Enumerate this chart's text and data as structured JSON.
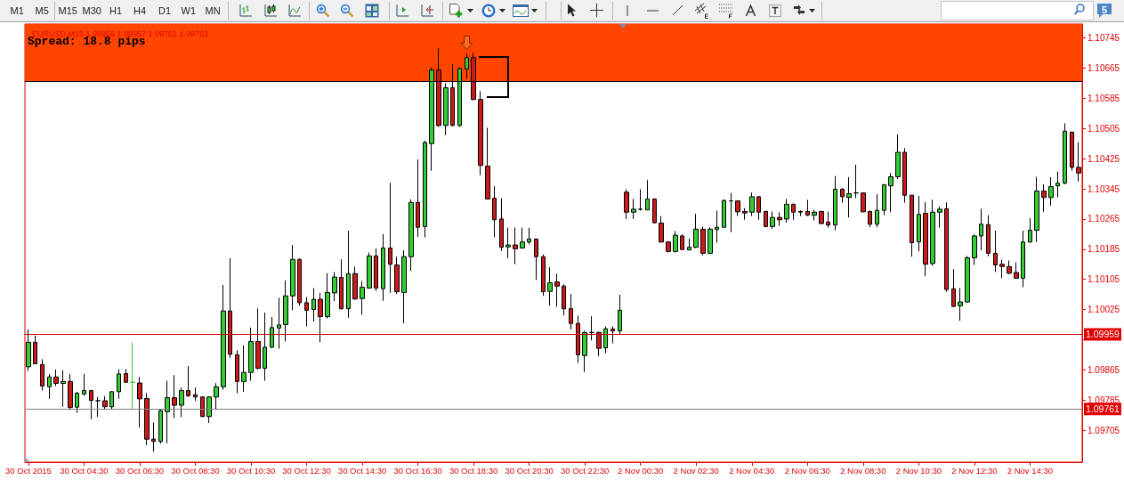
{
  "chart_data": {
    "type": "candlestick",
    "title": "EURUSD,M15 1.09956 1.09957 1.09761 1.09761",
    "categories": [
      "30 Oct 2015",
      null,
      null,
      null,
      null,
      null,
      null,
      null,
      "30 Oct 04:30",
      null,
      null,
      null,
      null,
      null,
      null,
      null,
      "30 Oct 06:30",
      null,
      null,
      null,
      null,
      null,
      null,
      null,
      "30 Oct 08:30",
      null,
      null,
      null,
      null,
      null,
      null,
      null,
      "30 Oct 10:30",
      null,
      null,
      null,
      null,
      null,
      null,
      null,
      "30 Oct 12:30",
      null,
      null,
      null,
      null,
      null,
      null,
      null,
      "30 Oct 14:30",
      null,
      null,
      null,
      null,
      null,
      null,
      null,
      "30 Oct 16:30",
      null,
      null,
      null,
      null,
      null,
      null,
      null,
      "30 Oct 18:30",
      null,
      null,
      null,
      null,
      null,
      null,
      null,
      "30 Oct 20:30",
      null,
      null,
      null,
      null,
      null,
      null,
      null,
      "30 Oct 22:30",
      null,
      null,
      null,
      null,
      null,
      null,
      null,
      "2 Nov 00:30",
      null,
      null,
      null,
      null,
      null,
      null,
      null,
      "2 Nov 02:30",
      null,
      null,
      null,
      null,
      null,
      null,
      null,
      "2 Nov 04:30",
      null,
      null,
      null,
      null,
      null,
      null,
      null,
      "2 Nov 06:30",
      null,
      null,
      null,
      null,
      null,
      null,
      null,
      "2 Nov 08:30",
      null,
      null,
      null,
      null,
      null,
      null,
      null,
      "2 Nov 10:30",
      null,
      null,
      null,
      null,
      null,
      null,
      null,
      "2 Nov 12:30",
      null,
      null,
      null,
      null,
      null,
      null,
      null,
      "2 Nov 14:30",
      null,
      null,
      null,
      null,
      null,
      null,
      null
    ],
    "ohlc": [
      [
        1.09873,
        1.09972,
        1.09862,
        1.09938
      ],
      [
        1.09938,
        1.09956,
        1.0988,
        1.09881
      ],
      [
        1.09879,
        1.09893,
        1.0981,
        1.09822
      ],
      [
        1.0982,
        1.09854,
        1.09788,
        1.09846
      ],
      [
        1.09846,
        1.09866,
        1.09822,
        1.09829
      ],
      [
        1.09829,
        1.09864,
        1.09767,
        1.09834
      ],
      [
        1.09834,
        1.09854,
        1.09758,
        1.09765
      ],
      [
        1.09766,
        1.09807,
        1.09751,
        1.09803
      ],
      [
        1.09801,
        1.09854,
        1.09796,
        1.0981
      ],
      [
        1.0981,
        1.09812,
        1.09734,
        1.09784
      ],
      [
        1.09783,
        1.09793,
        1.0974,
        1.09783
      ],
      [
        1.09783,
        1.09795,
        1.09759,
        1.09767
      ],
      [
        1.09767,
        1.09808,
        1.09759,
        1.09807
      ],
      [
        1.09807,
        1.09866,
        1.09788,
        1.09854
      ],
      [
        1.09855,
        1.09867,
        1.0983,
        1.09832
      ],
      [
        1.09832,
        1.09938,
        1.09759,
        1.09832
      ],
      [
        1.0983,
        1.09846,
        1.09712,
        1.09788
      ],
      [
        1.09789,
        1.09803,
        1.09665,
        1.09681
      ],
      [
        1.09681,
        1.09725,
        1.09648,
        1.09675
      ],
      [
        1.09675,
        1.09759,
        1.09669,
        1.09757
      ],
      [
        1.09754,
        1.09836,
        1.0967,
        1.09791
      ],
      [
        1.09791,
        1.09851,
        1.09737,
        1.09771
      ],
      [
        1.09771,
        1.09818,
        1.0974,
        1.0981
      ],
      [
        1.0981,
        1.09875,
        1.09793,
        1.09796
      ],
      [
        1.09799,
        1.09818,
        1.09783,
        1.09793
      ],
      [
        1.09793,
        1.09795,
        1.0974,
        1.09741
      ],
      [
        1.09741,
        1.09795,
        1.09724,
        1.09793
      ],
      [
        1.09793,
        1.0983,
        1.09759,
        1.0982
      ],
      [
        1.0982,
        1.1009,
        1.09812,
        1.10021
      ],
      [
        1.10021,
        1.10161,
        1.09897,
        1.09906
      ],
      [
        1.09905,
        1.09917,
        1.09803,
        1.09834
      ],
      [
        1.09834,
        1.0993,
        1.09807,
        1.09858
      ],
      [
        1.09858,
        1.09977,
        1.09836,
        1.0994
      ],
      [
        1.0994,
        1.10028,
        1.09866,
        1.09869
      ],
      [
        1.09869,
        1.10017,
        1.09836,
        1.09925
      ],
      [
        1.09925,
        1.10005,
        1.09922,
        1.09977
      ],
      [
        1.09976,
        1.10056,
        1.09921,
        1.09984
      ],
      [
        1.09985,
        1.10102,
        1.0994,
        1.10061
      ],
      [
        1.10061,
        1.10196,
        1.10023,
        1.10158
      ],
      [
        1.10158,
        1.1016,
        1.10035,
        1.10043
      ],
      [
        1.10043,
        1.10058,
        1.0998,
        1.10023
      ],
      [
        1.10025,
        1.10082,
        1.09993,
        1.10052
      ],
      [
        1.10052,
        1.10069,
        1.09938,
        1.10006
      ],
      [
        1.10006,
        1.10121,
        1.10001,
        1.1007
      ],
      [
        1.10069,
        1.10124,
        1.10047,
        1.10111
      ],
      [
        1.1011,
        1.10158,
        1.10025,
        1.10027
      ],
      [
        1.10027,
        1.10234,
        1.10003,
        1.1012
      ],
      [
        1.1012,
        1.10139,
        1.10051,
        1.10053
      ],
      [
        1.10054,
        1.101,
        1.10011,
        1.10084
      ],
      [
        1.10082,
        1.10176,
        1.1008,
        1.10167
      ],
      [
        1.10167,
        1.10187,
        1.10074,
        1.10082
      ],
      [
        1.1008,
        1.10225,
        1.10048,
        1.10188
      ],
      [
        1.10188,
        1.10361,
        1.10069,
        1.10145
      ],
      [
        1.10143,
        1.10165,
        1.10066,
        1.10072
      ],
      [
        1.1007,
        1.10182,
        1.09988,
        1.10165
      ],
      [
        1.10165,
        1.10317,
        1.10127,
        1.10309
      ],
      [
        1.10309,
        1.10423,
        1.10218,
        1.10243
      ],
      [
        1.10245,
        1.10473,
        1.10216,
        1.10468
      ],
      [
        1.10465,
        1.10667,
        1.10393,
        1.1066
      ],
      [
        1.1066,
        1.10717,
        1.10509,
        1.10513
      ],
      [
        1.10513,
        1.10625,
        1.10487,
        1.10613
      ],
      [
        1.10613,
        1.10675,
        1.10511,
        1.10513
      ],
      [
        1.10513,
        1.10667,
        1.10509,
        1.10664
      ],
      [
        1.10663,
        1.10704,
        1.10637,
        1.10693
      ],
      [
        1.10693,
        1.10706,
        1.1058,
        1.10582
      ],
      [
        1.10582,
        1.10604,
        1.10381,
        1.10407
      ],
      [
        1.10405,
        1.10507,
        1.10317,
        1.10318
      ],
      [
        1.1032,
        1.10352,
        1.10216,
        1.10263
      ],
      [
        1.10265,
        1.1032,
        1.1018,
        1.1019
      ],
      [
        1.10191,
        1.10242,
        1.10161,
        1.10196
      ],
      [
        1.10196,
        1.10242,
        1.10145,
        1.10186
      ],
      [
        1.10188,
        1.10242,
        1.10187,
        1.10204
      ],
      [
        1.10204,
        1.10242,
        1.10198,
        1.10212
      ],
      [
        1.10212,
        1.10213,
        1.10103,
        1.10165
      ],
      [
        1.10165,
        1.10171,
        1.10061,
        1.10072
      ],
      [
        1.10073,
        1.10137,
        1.10035,
        1.10096
      ],
      [
        1.10098,
        1.1012,
        1.10032,
        1.10087
      ],
      [
        1.10087,
        1.10092,
        1.10009,
        1.10027
      ],
      [
        1.10027,
        1.10066,
        1.09972,
        1.09988
      ],
      [
        1.09988,
        1.10009,
        1.09883,
        1.09905
      ],
      [
        1.09903,
        1.09968,
        1.09859,
        1.09964
      ],
      [
        1.09964,
        1.10007,
        1.09943,
        1.09964
      ],
      [
        1.09964,
        1.09966,
        1.09901,
        1.09922
      ],
      [
        1.09923,
        1.0998,
        1.09909,
        1.09974
      ],
      [
        1.09973,
        1.0998,
        1.09935,
        1.09968
      ],
      [
        1.09968,
        1.10064,
        1.09958,
        1.10023
      ],
      [
        1.10336,
        1.10344,
        1.10265,
        1.10283
      ],
      [
        1.10283,
        1.10318,
        1.10265,
        1.10291
      ],
      [
        1.10291,
        1.10344,
        1.10287,
        1.10291
      ],
      [
        1.10289,
        1.10368,
        1.10289,
        1.10318
      ],
      [
        1.10318,
        1.1032,
        1.10253,
        1.10255
      ],
      [
        1.10254,
        1.10273,
        1.10202,
        1.10204
      ],
      [
        1.10204,
        1.10206,
        1.10176,
        1.10179
      ],
      [
        1.10179,
        1.10233,
        1.10176,
        1.10222
      ],
      [
        1.1022,
        1.10224,
        1.10182,
        1.10184
      ],
      [
        1.10183,
        1.10213,
        1.10182,
        1.1019
      ],
      [
        1.1019,
        1.10279,
        1.10188,
        1.10238
      ],
      [
        1.10238,
        1.10245,
        1.10169,
        1.10174
      ],
      [
        1.10174,
        1.10243,
        1.10172,
        1.10238
      ],
      [
        1.10237,
        1.10287,
        1.10202,
        1.10243
      ],
      [
        1.10243,
        1.10317,
        1.10242,
        1.10314
      ],
      [
        1.10313,
        1.10334,
        1.1023,
        1.10313
      ],
      [
        1.10313,
        1.10314,
        1.10273,
        1.10284
      ],
      [
        1.10285,
        1.10294,
        1.10263,
        1.10281
      ],
      [
        1.10283,
        1.10335,
        1.10273,
        1.10324
      ],
      [
        1.10324,
        1.10326,
        1.10263,
        1.10283
      ],
      [
        1.10285,
        1.10287,
        1.10243,
        1.10245
      ],
      [
        1.10245,
        1.10285,
        1.10239,
        1.10269
      ],
      [
        1.10269,
        1.10283,
        1.10247,
        1.10263
      ],
      [
        1.10265,
        1.10318,
        1.10255,
        1.10304
      ],
      [
        1.10304,
        1.10306,
        1.10263,
        1.10283
      ],
      [
        1.10285,
        1.10288,
        1.10273,
        1.10283
      ],
      [
        1.10285,
        1.10316,
        1.10273,
        1.10275
      ],
      [
        1.10275,
        1.10289,
        1.10261,
        1.10283
      ],
      [
        1.10285,
        1.10287,
        1.10251,
        1.10253
      ],
      [
        1.10257,
        1.10285,
        1.10242,
        1.10249
      ],
      [
        1.10249,
        1.10379,
        1.10235,
        1.10344
      ],
      [
        1.10344,
        1.10347,
        1.10308,
        1.10324
      ],
      [
        1.10322,
        1.10376,
        1.10269,
        1.10332
      ],
      [
        1.10334,
        1.10409,
        1.1032,
        1.10334
      ],
      [
        1.10334,
        1.10335,
        1.10283,
        1.10284
      ],
      [
        1.10285,
        1.10287,
        1.10243,
        1.10251
      ],
      [
        1.10251,
        1.10331,
        1.10243,
        1.10288
      ],
      [
        1.10288,
        1.10357,
        1.10275,
        1.10356
      ],
      [
        1.10353,
        1.10387,
        1.10283,
        1.10377
      ],
      [
        1.10377,
        1.10489,
        1.10371,
        1.10442
      ],
      [
        1.10442,
        1.10453,
        1.10308,
        1.10328
      ],
      [
        1.10328,
        1.10329,
        1.10165,
        1.10202
      ],
      [
        1.10204,
        1.10326,
        1.10179,
        1.10277
      ],
      [
        1.1028,
        1.1031,
        1.10113,
        1.10145
      ],
      [
        1.10147,
        1.10316,
        1.10141,
        1.10283
      ],
      [
        1.10283,
        1.10298,
        1.10242,
        1.10291
      ],
      [
        1.10292,
        1.10309,
        1.10072,
        1.10078
      ],
      [
        1.1008,
        1.10132,
        1.10032,
        1.10033
      ],
      [
        1.10035,
        1.10082,
        1.09995,
        1.10045
      ],
      [
        1.10045,
        1.10167,
        1.10043,
        1.10162
      ],
      [
        1.10162,
        1.10224,
        1.10143,
        1.1022
      ],
      [
        1.1022,
        1.10292,
        1.10182,
        1.10251
      ],
      [
        1.1025,
        1.10275,
        1.10166,
        1.10174
      ],
      [
        1.10174,
        1.10234,
        1.10124,
        1.10143
      ],
      [
        1.10145,
        1.10157,
        1.10108,
        1.10139
      ],
      [
        1.10139,
        1.10155,
        1.10119,
        1.10121
      ],
      [
        1.10123,
        1.1015,
        1.10106,
        1.10108
      ],
      [
        1.10108,
        1.10234,
        1.10084,
        1.10204
      ],
      [
        1.10204,
        1.10267,
        1.10202,
        1.10235
      ],
      [
        1.10235,
        1.10377,
        1.10204,
        1.10339
      ],
      [
        1.10339,
        1.10357,
        1.10284,
        1.10322
      ],
      [
        1.10322,
        1.10376,
        1.103,
        1.10351
      ],
      [
        1.10353,
        1.10391,
        1.10322,
        1.1036
      ],
      [
        1.1036,
        1.10519,
        1.10357,
        1.10498
      ],
      [
        1.10495,
        1.10497,
        1.10393,
        1.10402
      ],
      [
        1.10402,
        1.10468,
        1.10364,
        1.10387
      ]
    ],
    "colors": [
      "#33cc33",
      "#cc1a1a",
      "#cc1a1a",
      "#33cc33",
      "#cc1a1a",
      "#33cc33",
      "#cc1a1a",
      "#33cc33",
      "#33cc33",
      "#cc1a1a",
      "#000000",
      "#cc1a1a",
      "#33cc33",
      "#33cc33",
      "#cc1a1a",
      "#33cc33",
      "#cc1a1a",
      "#cc1a1a",
      "#cc1a1a",
      "#33cc33",
      "#33cc33",
      "#cc1a1a",
      "#33cc33",
      "#cc1a1a",
      "#cc1a1a",
      "#cc1a1a",
      "#33cc33",
      "#33cc33",
      "#33cc33",
      "#cc1a1a",
      "#cc1a1a",
      "#33cc33",
      "#33cc33",
      "#cc1a1a",
      "#33cc33",
      "#33cc33",
      "#33cc33",
      "#33cc33",
      "#33cc33",
      "#cc1a1a",
      "#cc1a1a",
      "#33cc33",
      "#cc1a1a",
      "#33cc33",
      "#33cc33",
      "#cc1a1a",
      "#33cc33",
      "#cc1a1a",
      "#33cc33",
      "#33cc33",
      "#cc1a1a",
      "#33cc33",
      "#cc1a1a",
      "#cc1a1a",
      "#33cc33",
      "#33cc33",
      "#cc1a1a",
      "#33cc33",
      "#33cc33",
      "#cc1a1a",
      "#33cc33",
      "#cc1a1a",
      "#33cc33",
      "#33cc33",
      "#cc1a1a",
      "#cc1a1a",
      "#cc1a1a",
      "#cc1a1a",
      "#cc1a1a",
      "#33cc33",
      "#cc1a1a",
      "#33cc33",
      "#33cc33",
      "#cc1a1a",
      "#cc1a1a",
      "#33cc33",
      "#cc1a1a",
      "#cc1a1a",
      "#cc1a1a",
      "#cc1a1a",
      "#33cc33",
      "#000000",
      "#cc1a1a",
      "#33cc33",
      "#cc1a1a",
      "#33cc33",
      "#cc1a1a",
      "#33cc33",
      "#000000",
      "#33cc33",
      "#cc1a1a",
      "#cc1a1a",
      "#cc1a1a",
      "#33cc33",
      "#cc1a1a",
      "#33cc33",
      "#33cc33",
      "#cc1a1a",
      "#33cc33",
      "#33cc33",
      "#33cc33",
      "#000000",
      "#cc1a1a",
      "#cc1a1a",
      "#33cc33",
      "#cc1a1a",
      "#cc1a1a",
      "#33cc33",
      "#cc1a1a",
      "#33cc33",
      "#cc1a1a",
      "#cc1a1a",
      "#cc1a1a",
      "#33cc33",
      "#cc1a1a",
      "#cc1a1a",
      "#33cc33",
      "#cc1a1a",
      "#33cc33",
      "#000000",
      "#cc1a1a",
      "#cc1a1a",
      "#33cc33",
      "#33cc33",
      "#33cc33",
      "#33cc33",
      "#cc1a1a",
      "#cc1a1a",
      "#33cc33",
      "#cc1a1a",
      "#33cc33",
      "#33cc33",
      "#cc1a1a",
      "#cc1a1a",
      "#33cc33",
      "#33cc33",
      "#33cc33",
      "#33cc33",
      "#cc1a1a",
      "#cc1a1a",
      "#cc1a1a",
      "#cc1a1a",
      "#cc1a1a",
      "#33cc33",
      "#33cc33",
      "#33cc33",
      "#cc1a1a",
      "#33cc33",
      "#33cc33",
      "#33cc33",
      "#cc1a1a",
      "#cc1a1a"
    ],
    "color": "#000000",
    "ylim": [
      1.0962,
      1.10782
    ],
    "yticks": [
      1.10745,
      1.10665,
      1.10585,
      1.10505,
      1.10425,
      1.10345,
      1.10265,
      1.10185,
      1.10105,
      1.10025,
      {
        "value": 1.09945,
        "label": null
      },
      1.09865,
      1.09785,
      1.09705
    ],
    "grid": false,
    "bands": [
      {
        "axis": "y",
        "from": 1.1063,
        "to": 1.10782,
        "color": "#ff4500"
      }
    ],
    "ref_lines": [
      {
        "axis": "y",
        "value": 1.1063,
        "color": "#000000"
      },
      {
        "axis": "y",
        "value": 1.09959,
        "label": "1.09959",
        "color": "#d00000"
      },
      {
        "axis": "y",
        "value": 1.09761,
        "label": "1.09761",
        "color": "#808080"
      }
    ],
    "annotations": [
      "Spread: 18.8 pips",
      "M1",
      "M5",
      "M15",
      "M30",
      "H1",
      "H4",
      "D1",
      "W1",
      "MN",
      "5"
    ]
  }
}
